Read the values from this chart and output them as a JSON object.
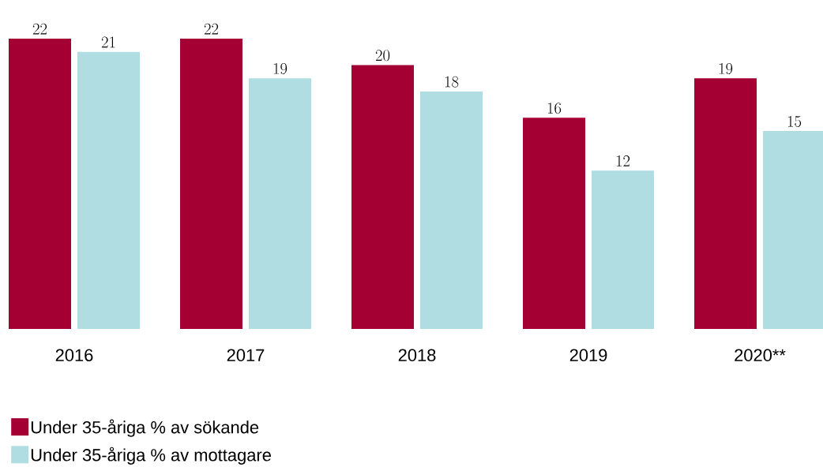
{
  "chart_data": {
    "type": "bar",
    "categories": [
      "2016",
      "2017",
      "2018",
      "2019",
      "2020**"
    ],
    "series": [
      {
        "name": "Under 35-åriga % av sökande",
        "color": "#a50034",
        "values": [
          22,
          22,
          20,
          16,
          19
        ]
      },
      {
        "name": "Under 35-åriga % av mottagare",
        "color": "#b0dde2",
        "values": [
          21,
          19,
          18,
          12,
          15
        ]
      }
    ],
    "data_labels": true,
    "legend": "bottom",
    "grid": false
  }
}
